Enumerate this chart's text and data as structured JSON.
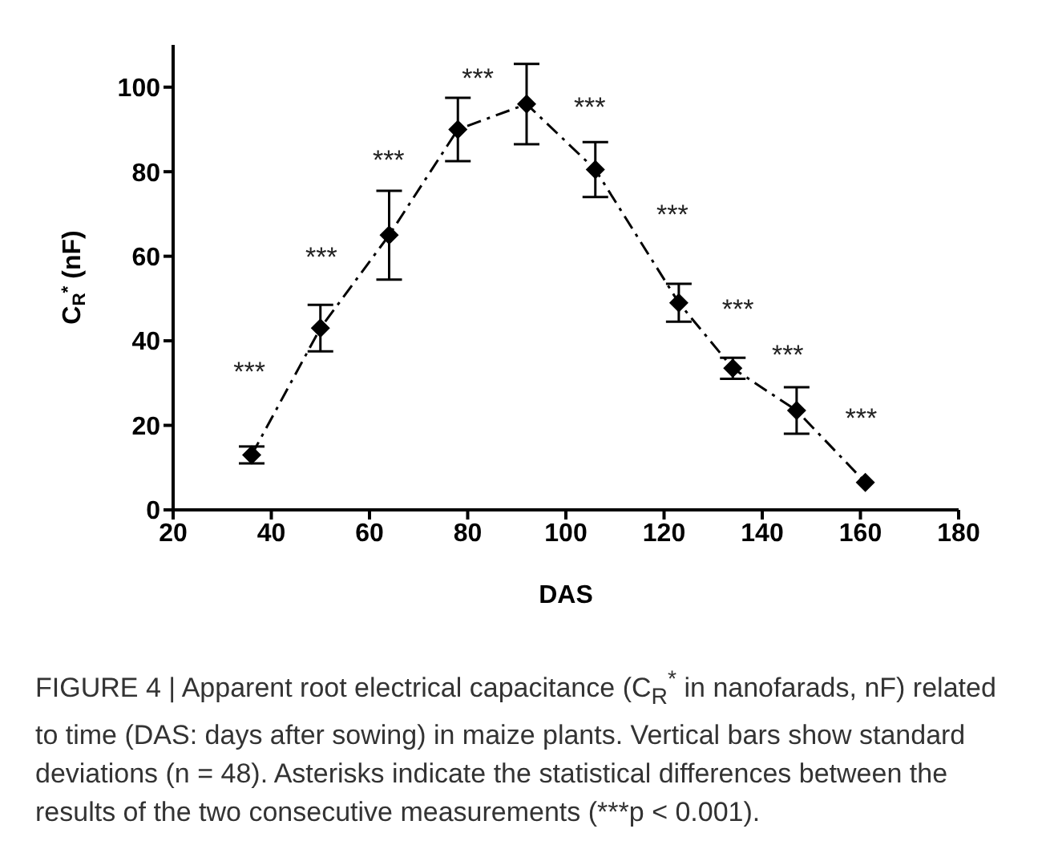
{
  "chart_data": {
    "type": "line",
    "xlabel": "DAS",
    "ylabel": "C$_{R}$$^{*}$ (nF)",
    "x": [
      36,
      50,
      64,
      78,
      92,
      106,
      123,
      134,
      147,
      161
    ],
    "series": [
      {
        "color": "#000000",
        "values": [
          13,
          43,
          65,
          90,
          96,
          80.5,
          49,
          33.5,
          23.5,
          6.5
        ],
        "errors": [
          2,
          5.5,
          10.5,
          7.5,
          9.5,
          6.5,
          4.5,
          2.5,
          5.5,
          null
        ],
        "marker": "diamond",
        "line_style": "dashdot"
      }
    ],
    "xlim": [
      20,
      180
    ],
    "xticks": [
      20,
      40,
      60,
      80,
      100,
      120,
      140,
      160,
      180
    ],
    "ylim": [
      0,
      110
    ],
    "yticks": [
      0,
      20,
      40,
      60,
      80,
      100
    ],
    "grid": false,
    "legend": false,
    "annotations": [
      "***",
      "***",
      "***",
      "***",
      "***",
      "***",
      "***",
      "***",
      "***",
      "FIGURE 4 | Apparent root electrical capacitance (C$_{R}$$^{*}$ in nanofarads, nF) related to time (DAS: days after sowing) in maize plants. Vertical bars show standard deviations (n = 48). Asterisks indicate the statistical differences between the results of the two consecutive measurements (***p < 0.001)."
    ]
  }
}
